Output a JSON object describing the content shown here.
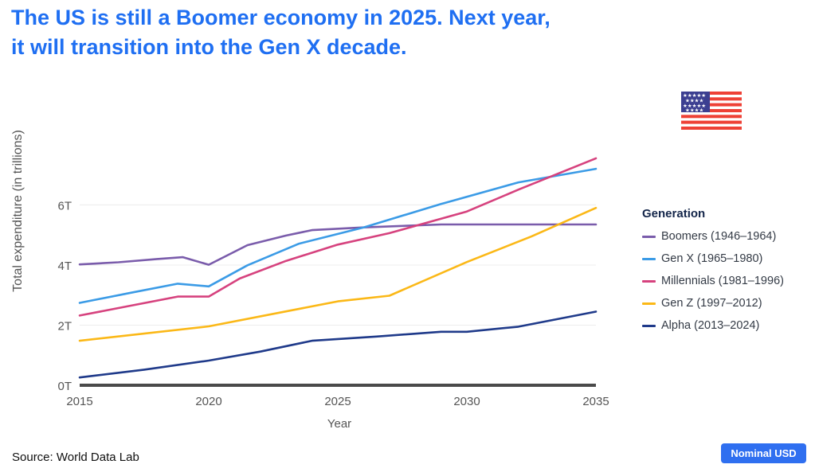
{
  "headline": {
    "line1": "The US is still a Boomer economy in 2025. Next year,",
    "line2": "it will transition into the Gen X decade."
  },
  "flag_icon": "us-flag-icon",
  "legend": {
    "title": "Generation"
  },
  "source": "Source: World Data Lab",
  "badge": "Nominal USD",
  "chart_data": {
    "type": "line",
    "title": "The US is still a Boomer economy in 2025. Next year, it will transition into the Gen X decade.",
    "xlabel": "Year",
    "ylabel": "Total expenditure (in trillions)",
    "xlim": [
      2015,
      2035
    ],
    "ylim": [
      0,
      8.5
    ],
    "xticks": [
      2015,
      2020,
      2025,
      2030,
      2035
    ],
    "xtick_labels": [
      "2015",
      "2020",
      "2025",
      "2030",
      "2035"
    ],
    "yticks": [
      0,
      2,
      4,
      6
    ],
    "ytick_labels": [
      "0T",
      "2T",
      "4T",
      "6T"
    ],
    "grid": "horizontal",
    "legend_position": "right",
    "series": [
      {
        "name": "Boomers (1946–1964)",
        "color": "#7a5cab",
        "x": [
          2015,
          2016.5,
          2018,
          2019,
          2020,
          2021.5,
          2023,
          2024,
          2026,
          2029,
          2032,
          2035
        ],
        "values": [
          4.02,
          4.09,
          4.2,
          4.26,
          4.01,
          4.66,
          4.98,
          5.16,
          5.25,
          5.35,
          5.35,
          5.35
        ]
      },
      {
        "name": "Gen X (1965–1980)",
        "color": "#3b9be6",
        "x": [
          2015,
          2017,
          2018.8,
          2020,
          2021.5,
          2023.5,
          2026,
          2029,
          2032,
          2035
        ],
        "values": [
          2.74,
          3.08,
          3.38,
          3.29,
          3.99,
          4.71,
          5.25,
          6.03,
          6.75,
          7.2
        ]
      },
      {
        "name": "Millennials (1981–1996)",
        "color": "#d6427e",
        "x": [
          2015,
          2017,
          2018.8,
          2020,
          2021.2,
          2023,
          2025,
          2027,
          2030,
          2032,
          2035
        ],
        "values": [
          2.32,
          2.65,
          2.95,
          2.95,
          3.55,
          4.14,
          4.68,
          5.06,
          5.78,
          6.51,
          7.55
        ]
      },
      {
        "name": "Gen Z (1997–2012)",
        "color": "#fbb817",
        "x": [
          2015,
          2020,
          2025,
          2027,
          2030,
          2032.5,
          2035
        ],
        "values": [
          1.48,
          1.96,
          2.79,
          2.98,
          4.1,
          4.95,
          5.9
        ]
      },
      {
        "name": "Alpha (2013–2024)",
        "color": "#1f3a8a",
        "x": [
          2015,
          2017.5,
          2020,
          2022,
          2024,
          2026.5,
          2029,
          2030,
          2032,
          2035
        ],
        "values": [
          0.26,
          0.52,
          0.82,
          1.12,
          1.48,
          1.62,
          1.78,
          1.78,
          1.95,
          2.45
        ]
      }
    ]
  }
}
